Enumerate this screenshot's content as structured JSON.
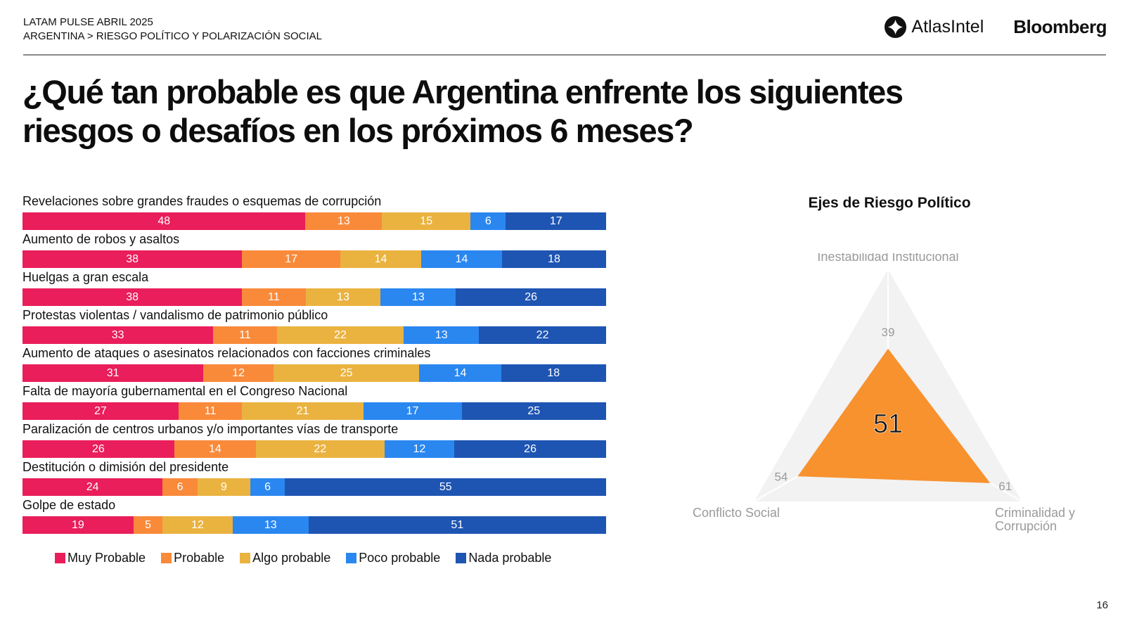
{
  "header": {
    "line1": "LATAM PULSE ABRIL 2025",
    "line2": "ARGENTINA > RIESGO POLÍTICO Y POLARIZACIÓN SOCIAL",
    "logo_atlas": "AtlasIntel",
    "logo_bloomberg": "Bloomberg"
  },
  "title": "¿Qué tan probable es que Argentina enfrente los siguientes riesgos o desafíos en los próximos 6 meses?",
  "page_number": "16",
  "colors": {
    "muy_probable": "#E91E5A",
    "probable": "#F98A3A",
    "algo_probable": "#EAB340",
    "poco_probable": "#2A87F0",
    "nada_probable": "#1E55B3",
    "radar_fill": "#F7922F",
    "radar_bg": "#F2F2F2"
  },
  "chart_data": [
    {
      "type": "bar",
      "orientation": "horizontal-stacked-100",
      "title": "",
      "categories": [
        "Revelaciones sobre grandes fraudes o esquemas de corrupción",
        "Aumento de robos y asaltos",
        "Huelgas a gran escala",
        "Protestas violentas / vandalismo de patrimonio público",
        "Aumento de ataques o asesinatos relacionados con facciones criminales",
        "Falta de mayoría gubernamental en el Congreso Nacional",
        "Paralización de centros urbanos y/o importantes vías de transporte",
        "Destitución o dimisión del presidente",
        "Golpe de estado"
      ],
      "series": [
        {
          "name": "Muy Probable",
          "color_key": "muy_probable",
          "values": [
            48,
            38,
            38,
            33,
            31,
            27,
            26,
            24,
            19
          ]
        },
        {
          "name": "Probable",
          "color_key": "probable",
          "values": [
            13,
            17,
            11,
            11,
            12,
            11,
            14,
            6,
            5
          ]
        },
        {
          "name": "Algo probable",
          "color_key": "algo_probable",
          "values": [
            15,
            14,
            13,
            22,
            25,
            21,
            22,
            9,
            12
          ]
        },
        {
          "name": "Poco probable",
          "color_key": "poco_probable",
          "values": [
            6,
            14,
            13,
            13,
            14,
            17,
            12,
            6,
            13
          ]
        },
        {
          "name": "Nada probable",
          "color_key": "nada_probable",
          "values": [
            17,
            18,
            26,
            22,
            18,
            25,
            26,
            55,
            51
          ]
        }
      ],
      "legend_position": "bottom",
      "xlim": [
        0,
        100
      ]
    },
    {
      "type": "radar",
      "title": "Ejes de Riesgo Político",
      "axes": [
        "Inestabilidad Institucional",
        "Criminalidad y Corrupción",
        "Conflicto Social"
      ],
      "values": [
        39,
        61,
        54
      ],
      "center_value": 51,
      "range": [
        0,
        100
      ]
    }
  ]
}
